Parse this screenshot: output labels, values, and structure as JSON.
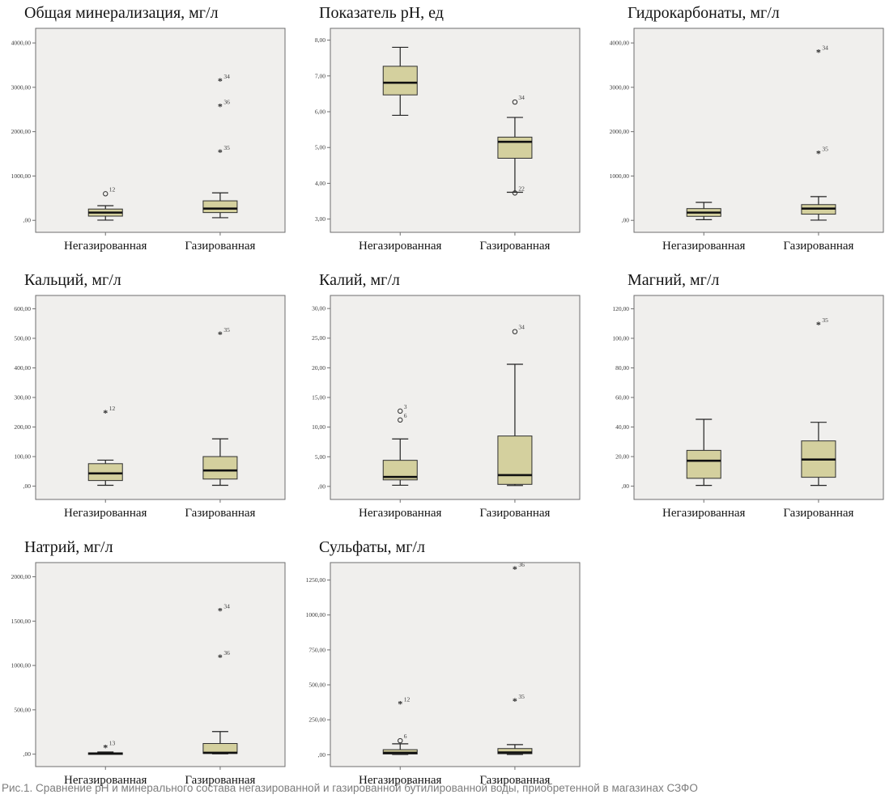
{
  "caption": "Рис.1. Сравнение pH и минерального состава негазированной и газированной бутилированной воды, приобретенной в магазинах СЗФО",
  "colors": {
    "box_fill": "#d4d09e",
    "box_stroke": "#2e2e2e",
    "median": "#111111",
    "whisker": "#222222",
    "plot_bg": "#f0efed",
    "plot_border": "#6e6e6e",
    "tick_text": "#3a3a3a",
    "category_text": "#141414",
    "outlier": "#2e2e2e"
  },
  "chart_data": [
    {
      "type": "box",
      "title": "Общая минерализация, мг/л",
      "categories": [
        "Негазированная",
        "Газированная"
      ],
      "ylim": [
        -270,
        4330
      ],
      "yticks": [
        0,
        1000,
        2000,
        3000,
        4000
      ],
      "ytick_labels": [
        ",00",
        "1000,00",
        "2000,00",
        "3000,00",
        "4000,00"
      ],
      "series": [
        {
          "category": "Негазированная",
          "whisker_low": 5,
          "q1": 95,
          "median": 175,
          "q3": 255,
          "whisker_high": 330,
          "outliers": [
            {
              "value": 600,
              "label": "12",
              "marker": "circle"
            }
          ]
        },
        {
          "category": "Газированная",
          "whisker_low": 60,
          "q1": 175,
          "median": 265,
          "q3": 440,
          "whisker_high": 620,
          "outliers": [
            {
              "value": 1540,
              "label": "35",
              "marker": "star"
            },
            {
              "value": 2570,
              "label": "36",
              "marker": "star"
            },
            {
              "value": 3140,
              "label": "34",
              "marker": "star"
            }
          ]
        }
      ]
    },
    {
      "type": "box",
      "title": "Показатель pH, ед",
      "categories": [
        "Негазированная",
        "Газированная"
      ],
      "ylim": [
        2.63,
        8.33
      ],
      "yticks": [
        3,
        4,
        5,
        6,
        7,
        8
      ],
      "ytick_labels": [
        "3,00",
        "4,00",
        "5,00",
        "6,00",
        "7,00",
        "8,00"
      ],
      "series": [
        {
          "category": "Негазированная",
          "whisker_low": 5.9,
          "q1": 6.47,
          "median": 6.81,
          "q3": 7.27,
          "whisker_high": 7.8,
          "outliers": []
        },
        {
          "category": "Газированная",
          "whisker_low": 3.75,
          "q1": 4.7,
          "median": 5.16,
          "q3": 5.29,
          "whisker_high": 5.84,
          "outliers": [
            {
              "value": 6.27,
              "label": "34",
              "marker": "circle"
            },
            {
              "value": 3.73,
              "label": "22",
              "marker": "circle"
            }
          ]
        }
      ]
    },
    {
      "type": "box",
      "title": "Гидрокарбонаты, мг/л",
      "categories": [
        "Негазированная",
        "Газированная"
      ],
      "ylim": [
        -270,
        4330
      ],
      "yticks": [
        0,
        1000,
        2000,
        3000,
        4000
      ],
      "ytick_labels": [
        ",00",
        "1000,00",
        "2000,00",
        "3000,00",
        "4000,00"
      ],
      "series": [
        {
          "category": "Негазированная",
          "whisker_low": 15,
          "q1": 90,
          "median": 175,
          "q3": 265,
          "whisker_high": 405,
          "outliers": []
        },
        {
          "category": "Газированная",
          "whisker_low": 5,
          "q1": 140,
          "median": 265,
          "q3": 355,
          "whisker_high": 535,
          "outliers": [
            {
              "value": 1510,
              "label": "35",
              "marker": "star"
            },
            {
              "value": 3790,
              "label": "34",
              "marker": "star"
            }
          ]
        }
      ]
    },
    {
      "type": "box",
      "title": "Кальций, мг/л",
      "categories": [
        "Негазированная",
        "Газированная"
      ],
      "ylim": [
        -45,
        645
      ],
      "yticks": [
        0,
        100,
        200,
        300,
        400,
        500,
        600
      ],
      "ytick_labels": [
        ",00",
        "100,00",
        "200,00",
        "300,00",
        "400,00",
        "500,00",
        "600,00"
      ],
      "series": [
        {
          "category": "Негазированная",
          "whisker_low": 3,
          "q1": 19,
          "median": 43,
          "q3": 76,
          "whisker_high": 88,
          "outliers": [
            {
              "value": 248,
              "label": "12",
              "marker": "star"
            }
          ]
        },
        {
          "category": "Газированная",
          "whisker_low": 3,
          "q1": 24,
          "median": 53,
          "q3": 100,
          "whisker_high": 160,
          "outliers": [
            {
              "value": 514,
              "label": "35",
              "marker": "star"
            }
          ]
        }
      ]
    },
    {
      "type": "box",
      "title": "Калий, мг/л",
      "categories": [
        "Негазированная",
        "Газированная"
      ],
      "ylim": [
        -2.2,
        32.2
      ],
      "yticks": [
        0,
        5,
        10,
        15,
        20,
        25,
        30
      ],
      "ytick_labels": [
        ",00",
        "5,00",
        "10,00",
        "15,00",
        "20,00",
        "25,00",
        "30,00"
      ],
      "series": [
        {
          "category": "Негазированная",
          "whisker_low": 0.2,
          "q1": 1.1,
          "median": 1.6,
          "q3": 4.4,
          "whisker_high": 8.0,
          "outliers": [
            {
              "value": 12.7,
              "label": "3",
              "marker": "circle"
            },
            {
              "value": 11.2,
              "label": "6",
              "marker": "circle"
            }
          ]
        },
        {
          "category": "Газированная",
          "whisker_low": 0.15,
          "q1": 0.35,
          "median": 1.9,
          "q3": 8.5,
          "whisker_high": 20.6,
          "outliers": [
            {
              "value": 26.1,
              "label": "34",
              "marker": "circle"
            }
          ]
        }
      ]
    },
    {
      "type": "box",
      "title": "Магний, мг/л",
      "categories": [
        "Негазированная",
        "Газированная"
      ],
      "ylim": [
        -9,
        129
      ],
      "yticks": [
        0,
        20,
        40,
        60,
        80,
        100,
        120
      ],
      "ytick_labels": [
        ",00",
        "20,00",
        "40,00",
        "60,00",
        "80,00",
        "100,00",
        "120,00"
      ],
      "series": [
        {
          "category": "Негазированная",
          "whisker_low": 0.5,
          "q1": 5.3,
          "median": 17.2,
          "q3": 24.2,
          "whisker_high": 45.2,
          "outliers": []
        },
        {
          "category": "Газированная",
          "whisker_low": 0.5,
          "q1": 6.0,
          "median": 18.0,
          "q3": 30.6,
          "whisker_high": 43.2,
          "outliers": [
            {
              "value": 109.3,
              "label": "35",
              "marker": "star"
            }
          ]
        }
      ]
    },
    {
      "type": "box",
      "title": "Натрий, мг/л",
      "categories": [
        "Негазированная",
        "Газированная"
      ],
      "ylim": [
        -140,
        2160
      ],
      "yticks": [
        0,
        500,
        1000,
        1500,
        2000
      ],
      "ytick_labels": [
        ",00",
        "500,00",
        "1000,00",
        "1500,00",
        "2000,00"
      ],
      "series": [
        {
          "category": "Негазированная",
          "whisker_low": 1,
          "q1": 3,
          "median": 8,
          "q3": 15,
          "whisker_high": 25,
          "outliers": [
            {
              "value": 76,
              "label": "13",
              "marker": "star"
            }
          ]
        },
        {
          "category": "Газированная",
          "whisker_low": 4,
          "q1": 8,
          "median": 16,
          "q3": 120,
          "whisker_high": 255,
          "outliers": [
            {
              "value": 1090,
              "label": "36",
              "marker": "star"
            },
            {
              "value": 1615,
              "label": "34",
              "marker": "star"
            }
          ]
        }
      ]
    },
    {
      "type": "box",
      "title": "Сульфаты, мг/л",
      "categories": [
        "Негазированная",
        "Газированная"
      ],
      "ylim": [
        -85,
        1375
      ],
      "yticks": [
        0,
        250,
        500,
        750,
        1000,
        1250
      ],
      "ytick_labels": [
        ",00",
        "250,00",
        "500,00",
        "750,00",
        "1000,00",
        "1250,00"
      ],
      "series": [
        {
          "category": "Негазированная",
          "whisker_low": 2,
          "q1": 5,
          "median": 14,
          "q3": 36,
          "whisker_high": 78,
          "outliers": [
            {
              "value": 100,
              "label": "6",
              "marker": "circle"
            },
            {
              "value": 365,
              "label": "12",
              "marker": "star"
            }
          ]
        },
        {
          "category": "Газированная",
          "whisker_low": 2,
          "q1": 7,
          "median": 16,
          "q3": 44,
          "whisker_high": 72,
          "outliers": [
            {
              "value": 385,
              "label": "35",
              "marker": "star"
            },
            {
              "value": 1330,
              "label": "36",
              "marker": "star"
            }
          ]
        }
      ]
    }
  ]
}
